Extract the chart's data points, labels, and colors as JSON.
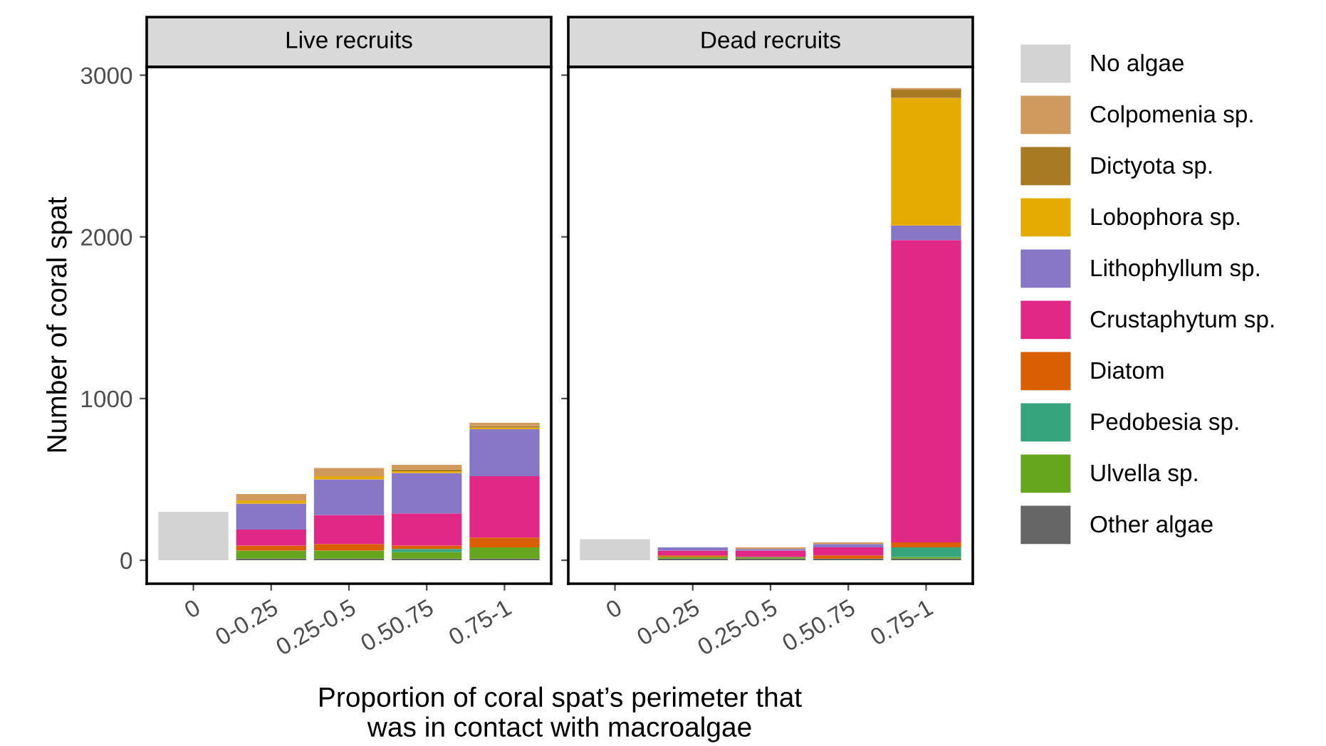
{
  "chart_data": [
    {
      "type": "bar",
      "stacked": true,
      "title": "Live recruits",
      "ylabel": "Number of coral spat",
      "xlabel": "Proportion of coral spat’s perimeter that\nwas in contact with macroalgae",
      "categories": [
        "0",
        "0-0.25",
        "0.25-0.5",
        "0.50.75",
        "0.75-1"
      ],
      "ylim": [
        -145,
        3051
      ],
      "yticks": [
        0,
        1000,
        2000,
        3000
      ],
      "grid": false,
      "legend": "right",
      "series": [
        {
          "name": "Other algae",
          "color": "#666666",
          "values": [
            null,
            10,
            10,
            10,
            10
          ]
        },
        {
          "name": "Ulvella sp.",
          "color": "#66a61e",
          "values": [
            null,
            50,
            50,
            40,
            70
          ]
        },
        {
          "name": "Pedobesia sp.",
          "color": "#36a57d",
          "values": [
            null,
            null,
            null,
            20,
            null
          ]
        },
        {
          "name": "Diatom",
          "color": "#d95f02",
          "values": [
            null,
            30,
            40,
            20,
            60
          ]
        },
        {
          "name": "Crustaphytum sp.",
          "color": "#e22886",
          "values": [
            null,
            100,
            180,
            200,
            380
          ]
        },
        {
          "name": "Lithophyllum sp.",
          "color": "#8877c7",
          "values": [
            null,
            160,
            220,
            250,
            290
          ]
        },
        {
          "name": "Lobophora sp.",
          "color": "#e6ab02",
          "values": [
            null,
            20,
            20,
            10,
            10
          ]
        },
        {
          "name": "Dictyota sp.",
          "color": "#a87a24",
          "values": [
            null,
            null,
            null,
            10,
            10
          ]
        },
        {
          "name": "Colpomenia sp.",
          "color": "#d09a5f",
          "values": [
            null,
            40,
            50,
            30,
            20
          ]
        },
        {
          "name": "No algae",
          "color": "#d3d3d3",
          "values": [
            300,
            null,
            null,
            null,
            null
          ]
        }
      ]
    },
    {
      "type": "bar",
      "stacked": true,
      "title": "Dead recruits",
      "categories": [
        "0",
        "0-0.25",
        "0.25-0.5",
        "0.50.75",
        "0.75-1"
      ],
      "ylim": [
        -145,
        3051
      ],
      "yticks": [
        0,
        1000,
        2000,
        3000
      ],
      "tick_labels": "x",
      "grid": false,
      "series": [
        {
          "color": "#666666",
          "values": [
            null,
            10,
            10,
            10,
            10
          ]
        },
        {
          "color": "#66a61e",
          "values": [
            null,
            10,
            10,
            null,
            10
          ]
        },
        {
          "color": "#36a57d",
          "values": [
            null,
            null,
            null,
            null,
            60
          ]
        },
        {
          "color": "#d95f02",
          "values": [
            null,
            10,
            null,
            20,
            30
          ]
        },
        {
          "color": "#e22886",
          "values": [
            null,
            30,
            40,
            50,
            1870
          ]
        },
        {
          "color": "#8877c7",
          "values": [
            null,
            20,
            10,
            20,
            90
          ]
        },
        {
          "color": "#e6ab02",
          "values": [
            null,
            null,
            null,
            null,
            790
          ]
        },
        {
          "color": "#a87a24",
          "values": [
            null,
            null,
            null,
            null,
            50
          ]
        },
        {
          "color": "#d09a5f",
          "values": [
            null,
            null,
            10,
            10,
            10
          ]
        },
        {
          "color": "#d3d3d3",
          "values": [
            130,
            null,
            null,
            null,
            null
          ]
        }
      ]
    }
  ]
}
